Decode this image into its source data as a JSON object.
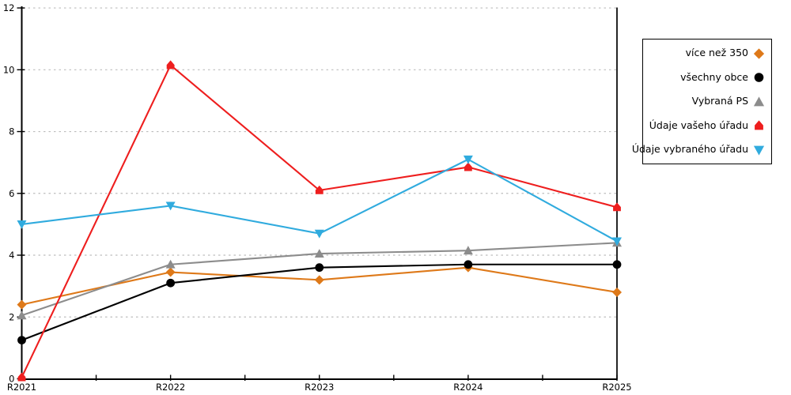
{
  "chart_data": {
    "type": "line",
    "title": "",
    "xlabel": "",
    "ylabel": "",
    "categories": [
      "R2021",
      "R2022",
      "R2023",
      "R2024",
      "R2025"
    ],
    "series": [
      {
        "name": "více než 350",
        "color": "#DE7919",
        "marker": "diamond",
        "values": [
          2.4,
          3.45,
          3.2,
          3.6,
          2.8
        ]
      },
      {
        "name": "všechny obce",
        "color": "#000000",
        "marker": "circle",
        "values": [
          1.25,
          3.1,
          3.6,
          3.7,
          3.7
        ]
      },
      {
        "name": "Vybraná PS",
        "color": "#8C8C8C",
        "marker": "triangle-up",
        "values": [
          2.05,
          3.7,
          4.05,
          4.15,
          4.4
        ]
      },
      {
        "name": "Údaje vašeho úřadu",
        "color": "#EE1E1E",
        "marker": "house",
        "values": [
          0.05,
          10.15,
          6.1,
          6.85,
          5.55
        ]
      },
      {
        "name": "Údaje vybraného úřadu",
        "color": "#30ABDE",
        "marker": "triangle-down",
        "values": [
          5.0,
          5.6,
          4.7,
          7.1,
          4.45
        ]
      }
    ],
    "ylim": [
      0,
      12
    ],
    "yticks": [
      0,
      2,
      4,
      6,
      8,
      10,
      12
    ],
    "grid": "horizontal-dotted",
    "gridline_color": "#BDBDBD",
    "axis_color": "#000000",
    "legend_position": "outside-right",
    "minor_x_ticks": "midpoints"
  }
}
